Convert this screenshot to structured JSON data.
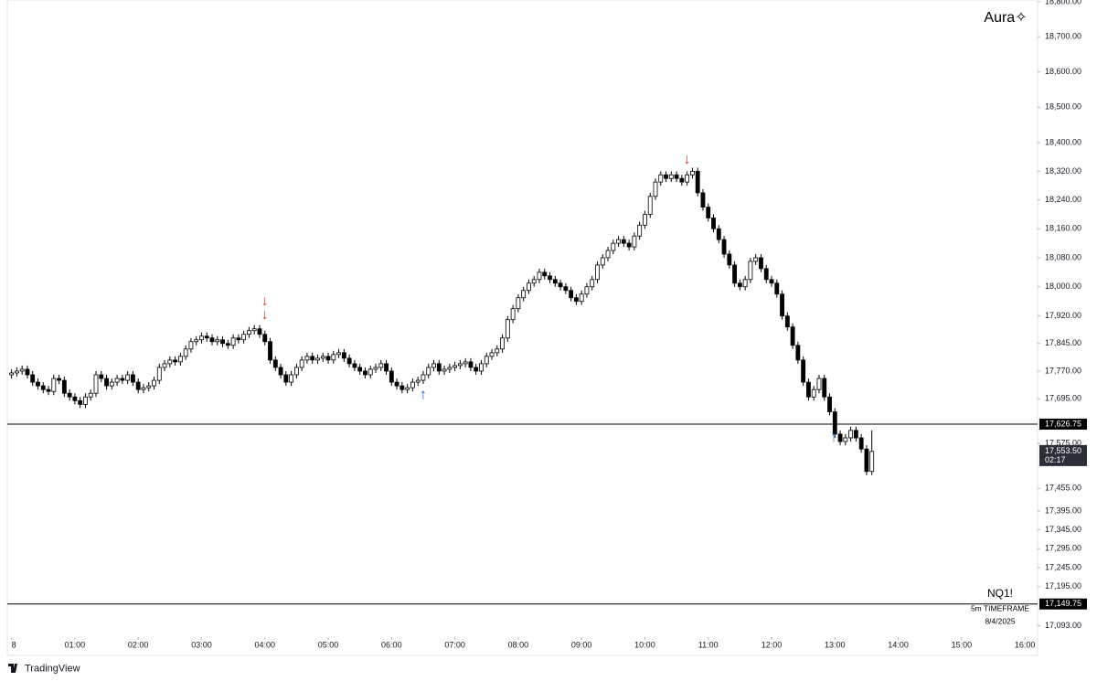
{
  "chart_data": {
    "type": "candlestick",
    "symbol": "NQ1!",
    "brand": "Aura✧",
    "timeframe": "5m TIMEFRAME",
    "date": "8/4/2025",
    "watermark": "TradingView",
    "log_scale": true,
    "up_color": "#ffffff",
    "down_color": "#000000",
    "wick_color": "#000000",
    "xlim": [
      -4,
      972
    ],
    "ylim": [
      17068,
      18805
    ],
    "xticks": [
      {
        "value": 0,
        "label": "8"
      },
      {
        "value": 60,
        "label": "01:00"
      },
      {
        "value": 120,
        "label": "02:00"
      },
      {
        "value": 180,
        "label": "03:00"
      },
      {
        "value": 240,
        "label": "04:00"
      },
      {
        "value": 300,
        "label": "05:00"
      },
      {
        "value": 360,
        "label": "06:00"
      },
      {
        "value": 420,
        "label": "07:00"
      },
      {
        "value": 480,
        "label": "08:00"
      },
      {
        "value": 540,
        "label": "09:00"
      },
      {
        "value": 600,
        "label": "10:00"
      },
      {
        "value": 660,
        "label": "11:00"
      },
      {
        "value": 720,
        "label": "12:00"
      },
      {
        "value": 780,
        "label": "13:00"
      },
      {
        "value": 840,
        "label": "14:00"
      },
      {
        "value": 900,
        "label": "15:00"
      },
      {
        "value": 960,
        "label": "16:00"
      }
    ],
    "yticks": [
      {
        "value": 18800,
        "label": "18,800.00"
      },
      {
        "value": 18700,
        "label": "18,700.00"
      },
      {
        "value": 18600,
        "label": "18,600.00"
      },
      {
        "value": 18500,
        "label": "18,500.00"
      },
      {
        "value": 18400,
        "label": "18,400.00"
      },
      {
        "value": 18320,
        "label": "18,320.00"
      },
      {
        "value": 18240,
        "label": "18,240.00"
      },
      {
        "value": 18160,
        "label": "18,160.00"
      },
      {
        "value": 18080,
        "label": "18,080.00"
      },
      {
        "value": 18000,
        "label": "18,000.00"
      },
      {
        "value": 17920,
        "label": "17,920.00"
      },
      {
        "value": 17845,
        "label": "17,845.00"
      },
      {
        "value": 17770,
        "label": "17,770.00"
      },
      {
        "value": 17695,
        "label": "17,695.00"
      },
      {
        "value": 17575,
        "label": "17,575.00"
      },
      {
        "value": 17455,
        "label": "17,455.00"
      },
      {
        "value": 17395,
        "label": "17,395.00"
      },
      {
        "value": 17345,
        "label": "17,345.00"
      },
      {
        "value": 17295,
        "label": "17,295.00"
      },
      {
        "value": 17245,
        "label": "17,245.00"
      },
      {
        "value": 17195,
        "label": "17,195.00"
      },
      {
        "value": 17093,
        "label": "17,093.00"
      }
    ],
    "hlines": [
      {
        "value": 17626.75,
        "label": "17,626.75"
      },
      {
        "value": 17149.75,
        "label": "17,149.75"
      }
    ],
    "last_price": {
      "value": 17553.5,
      "label": "17,553.50",
      "countdown": "02:17"
    },
    "annotations": [
      {
        "text": "↓",
        "x": 240,
        "y": 17960,
        "color": "#e53935"
      },
      {
        "text": "↓",
        "x": 240,
        "y": 17922,
        "color": "#e53935"
      },
      {
        "text": "↑",
        "x": 390,
        "y": 17705,
        "color": "#1e63d6"
      },
      {
        "text": "↓",
        "x": 640,
        "y": 18352,
        "color": "#e53935"
      },
      {
        "text": "↑",
        "x": 779,
        "y": 17590,
        "color": "#1e63d6"
      }
    ],
    "x": [
      0,
      5,
      10,
      15,
      20,
      25,
      30,
      35,
      40,
      45,
      50,
      55,
      60,
      65,
      70,
      75,
      80,
      85,
      90,
      95,
      100,
      105,
      110,
      115,
      120,
      125,
      130,
      135,
      140,
      145,
      150,
      155,
      160,
      165,
      170,
      175,
      180,
      185,
      190,
      195,
      200,
      205,
      210,
      215,
      220,
      225,
      230,
      235,
      240,
      245,
      250,
      255,
      260,
      265,
      270,
      275,
      280,
      285,
      290,
      295,
      300,
      305,
      310,
      315,
      320,
      325,
      330,
      335,
      340,
      345,
      350,
      355,
      360,
      365,
      370,
      375,
      380,
      385,
      390,
      395,
      400,
      405,
      410,
      415,
      420,
      425,
      430,
      435,
      440,
      445,
      450,
      455,
      460,
      465,
      470,
      475,
      480,
      485,
      490,
      495,
      500,
      505,
      510,
      515,
      520,
      525,
      530,
      535,
      540,
      545,
      550,
      555,
      560,
      565,
      570,
      575,
      580,
      585,
      590,
      595,
      600,
      605,
      610,
      615,
      620,
      625,
      630,
      635,
      640,
      645,
      650,
      655,
      660,
      665,
      670,
      675,
      680,
      685,
      690,
      695,
      700,
      705,
      710,
      715,
      720,
      725,
      730,
      735,
      740,
      745,
      750,
      755,
      760,
      765,
      770,
      775,
      780,
      785,
      790,
      795,
      800,
      805,
      810,
      815
    ],
    "open": [
      17760,
      17765,
      17770,
      17775,
      17760,
      17740,
      17730,
      17720,
      17715,
      17750,
      17745,
      17710,
      17700,
      17690,
      17680,
      17700,
      17710,
      17760,
      17750,
      17730,
      17740,
      17750,
      17745,
      17760,
      17740,
      17720,
      17725,
      17730,
      17745,
      17780,
      17790,
      17800,
      17795,
      17810,
      17830,
      17850,
      17855,
      17865,
      17860,
      17850,
      17855,
      17845,
      17840,
      17860,
      17855,
      17870,
      17880,
      17885,
      17870,
      17850,
      17800,
      17780,
      17760,
      17740,
      17760,
      17780,
      17800,
      17810,
      17800,
      17805,
      17810,
      17800,
      17815,
      17820,
      17805,
      17790,
      17780,
      17770,
      17760,
      17775,
      17780,
      17790,
      17770,
      17740,
      17730,
      17720,
      17725,
      17740,
      17745,
      17760,
      17780,
      17790,
      17770,
      17775,
      17780,
      17785,
      17790,
      17795,
      17780,
      17770,
      17790,
      17810,
      17820,
      17830,
      17860,
      17910,
      17940,
      17970,
      17990,
      18010,
      18020,
      18040,
      18030,
      18020,
      18010,
      18000,
      17990,
      17970,
      17960,
      17980,
      18000,
      18020,
      18060,
      18080,
      18100,
      18120,
      18130,
      18120,
      18110,
      18140,
      18170,
      18200,
      18250,
      18290,
      18310,
      18300,
      18310,
      18300,
      18290,
      18310,
      18320,
      18260,
      18220,
      18190,
      18160,
      18130,
      18090,
      18060,
      18010,
      18000,
      18020,
      18070,
      18080,
      18050,
      18020,
      18010,
      17980,
      17920,
      17890,
      17840,
      17800,
      17740,
      17700,
      17720,
      17750,
      17700,
      17660,
      17600,
      17580,
      17590,
      17610,
      17590,
      17560,
      17500
    ],
    "high": [
      17775,
      17780,
      17785,
      17785,
      17770,
      17750,
      17740,
      17730,
      17760,
      17760,
      17755,
      17720,
      17710,
      17700,
      17710,
      17720,
      17770,
      17770,
      17760,
      17750,
      17760,
      17760,
      17770,
      17770,
      17750,
      17735,
      17740,
      17755,
      17790,
      17800,
      17810,
      17810,
      17820,
      17840,
      17860,
      17865,
      17875,
      17875,
      17870,
      17865,
      17865,
      17855,
      17870,
      17870,
      17880,
      17890,
      17895,
      17895,
      17880,
      17860,
      17810,
      17790,
      17770,
      17770,
      17790,
      17810,
      17820,
      17820,
      17815,
      17820,
      17820,
      17825,
      17830,
      17830,
      17815,
      17800,
      17790,
      17780,
      17785,
      17790,
      17800,
      17800,
      17780,
      17750,
      17740,
      17735,
      17750,
      17755,
      17770,
      17790,
      17800,
      17800,
      17785,
      17790,
      17795,
      17800,
      17805,
      17805,
      17790,
      17800,
      17820,
      17830,
      17840,
      17870,
      17920,
      17950,
      17980,
      18000,
      18020,
      18030,
      18050,
      18050,
      18040,
      18030,
      18020,
      18010,
      18000,
      17980,
      17990,
      18010,
      18030,
      18070,
      18090,
      18110,
      18130,
      18140,
      18140,
      18130,
      18150,
      18180,
      18210,
      18260,
      18300,
      18320,
      18320,
      18320,
      18320,
      18310,
      18320,
      18330,
      18330,
      18270,
      18230,
      18200,
      18170,
      18140,
      18100,
      18070,
      18020,
      18030,
      18080,
      18090,
      18090,
      18060,
      18030,
      18020,
      17990,
      17930,
      17900,
      17850,
      17810,
      17750,
      17730,
      17760,
      17760,
      17710,
      17670,
      17610,
      17600,
      17620,
      17620,
      17600,
      17570,
      17610
    ],
    "low": [
      17750,
      17755,
      17760,
      17750,
      17730,
      17720,
      17710,
      17705,
      17705,
      17735,
      17700,
      17690,
      17680,
      17670,
      17670,
      17690,
      17700,
      17740,
      17720,
      17720,
      17730,
      17735,
      17735,
      17730,
      17710,
      17710,
      17715,
      17720,
      17735,
      17770,
      17780,
      17785,
      17785,
      17800,
      17820,
      17840,
      17845,
      17850,
      17840,
      17840,
      17835,
      17830,
      17830,
      17845,
      17845,
      17860,
      17870,
      17860,
      17840,
      17790,
      17770,
      17750,
      17730,
      17730,
      17750,
      17770,
      17790,
      17790,
      17790,
      17795,
      17790,
      17790,
      17805,
      17795,
      17780,
      17770,
      17760,
      17750,
      17750,
      17765,
      17770,
      17760,
      17730,
      17720,
      17710,
      17710,
      17715,
      17730,
      17735,
      17750,
      17770,
      17760,
      17760,
      17765,
      17770,
      17775,
      17780,
      17770,
      17760,
      17760,
      17780,
      17800,
      17810,
      17820,
      17850,
      17900,
      17930,
      17960,
      17980,
      18000,
      18010,
      18020,
      18010,
      18000,
      17990,
      17980,
      17960,
      17950,
      17950,
      17970,
      17990,
      18010,
      18050,
      18070,
      18090,
      18110,
      18110,
      18100,
      18100,
      18130,
      18160,
      18190,
      18240,
      18280,
      18290,
      18290,
      18290,
      18280,
      18280,
      18300,
      18250,
      18210,
      18180,
      18150,
      18120,
      18080,
      18050,
      18000,
      17990,
      17990,
      18010,
      18060,
      18040,
      18010,
      18000,
      17970,
      17910,
      17880,
      17830,
      17790,
      17730,
      17690,
      17690,
      17710,
      17690,
      17650,
      17590,
      17570,
      17570,
      17580,
      17580,
      17550,
      17490,
      17490
    ],
    "close": [
      17765,
      17770,
      17775,
      17760,
      17740,
      17730,
      17720,
      17715,
      17750,
      17745,
      17710,
      17700,
      17690,
      17680,
      17700,
      17710,
      17760,
      17750,
      17730,
      17740,
      17750,
      17745,
      17760,
      17740,
      17720,
      17725,
      17730,
      17745,
      17780,
      17790,
      17800,
      17795,
      17810,
      17830,
      17850,
      17855,
      17865,
      17860,
      17850,
      17855,
      17845,
      17840,
      17860,
      17855,
      17870,
      17880,
      17885,
      17870,
      17850,
      17800,
      17780,
      17760,
      17740,
      17760,
      17780,
      17800,
      17810,
      17800,
      17805,
      17810,
      17800,
      17815,
      17820,
      17805,
      17790,
      17780,
      17770,
      17760,
      17775,
      17780,
      17790,
      17770,
      17740,
      17730,
      17720,
      17725,
      17740,
      17745,
      17760,
      17780,
      17790,
      17770,
      17775,
      17780,
      17785,
      17790,
      17795,
      17780,
      17770,
      17790,
      17810,
      17820,
      17830,
      17860,
      17910,
      17940,
      17970,
      17990,
      18010,
      18020,
      18040,
      18030,
      18020,
      18010,
      18000,
      17990,
      17970,
      17960,
      17980,
      18000,
      18020,
      18060,
      18080,
      18100,
      18120,
      18130,
      18120,
      18110,
      18140,
      18170,
      18200,
      18250,
      18290,
      18310,
      18300,
      18310,
      18300,
      18290,
      18310,
      18320,
      18260,
      18220,
      18190,
      18160,
      18130,
      18090,
      18060,
      18010,
      18000,
      18020,
      18070,
      18080,
      18050,
      18020,
      18010,
      17980,
      17920,
      17890,
      17840,
      17800,
      17740,
      17700,
      17720,
      17750,
      17700,
      17660,
      17600,
      17580,
      17590,
      17610,
      17590,
      17560,
      17500,
      17553.5
    ]
  }
}
